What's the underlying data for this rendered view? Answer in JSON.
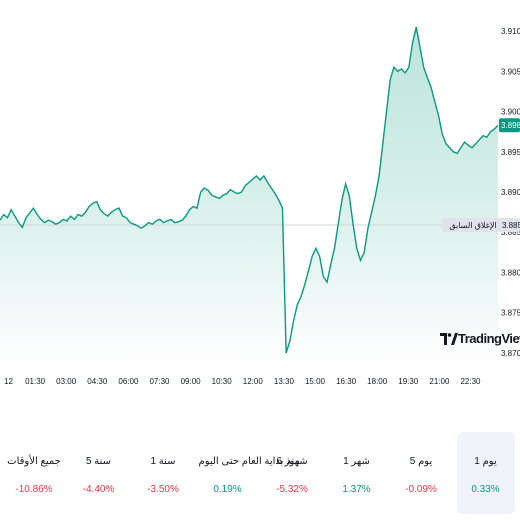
{
  "chart_data": {
    "type": "area",
    "x_ticks": [
      "12",
      "01:30",
      "03:00",
      "04:30",
      "06:00",
      "07:30",
      "09:00",
      "10:30",
      "12:00",
      "13:30",
      "15:00",
      "16:30",
      "18:00",
      "19:30",
      "21:00",
      "22:30"
    ],
    "y_ticks": [
      "3.9100",
      "3.9050",
      "3.9000",
      "3.8950",
      "3.8900",
      "3.8850",
      "3.8800",
      "3.8750",
      "3.8700"
    ],
    "ylim": [
      3.8685,
      3.912
    ],
    "series": [
      {
        "values": [
          3.8865,
          3.8872,
          3.8868,
          3.8878,
          3.887,
          3.8862,
          3.8856,
          3.8868,
          3.8874,
          3.888,
          3.8872,
          3.8866,
          3.8862,
          3.8865,
          3.8863,
          3.886,
          3.8862,
          3.8866,
          3.8864,
          3.887,
          3.8866,
          3.8872,
          3.887,
          3.8875,
          3.8882,
          3.8886,
          3.8888,
          3.8878,
          3.8873,
          3.887,
          3.8875,
          3.8878,
          3.888,
          3.887,
          3.8868,
          3.8862,
          3.886,
          3.8858,
          3.8855,
          3.8858,
          3.8862,
          3.886,
          3.8864,
          3.8866,
          3.8862,
          3.8864,
          3.8866,
          3.8862,
          3.8863,
          3.8865,
          3.887,
          3.8878,
          3.8882,
          3.888,
          3.89,
          3.8905,
          3.8902,
          3.8896,
          3.8894,
          3.8892,
          3.8896,
          3.8898,
          3.8903,
          3.89,
          3.8898,
          3.89,
          3.8908,
          3.8912,
          3.8916,
          3.892,
          3.8915,
          3.892,
          3.8912,
          3.8905,
          3.8898,
          3.889,
          3.888,
          3.87,
          3.8715,
          3.874,
          3.876,
          3.877,
          3.8785,
          3.8802,
          3.882,
          3.883,
          3.882,
          3.8795,
          3.8788,
          3.881,
          3.883,
          3.886,
          3.889,
          3.891,
          3.8895,
          3.886,
          3.883,
          3.8815,
          3.8825,
          3.8855,
          3.8875,
          3.8895,
          3.892,
          3.896,
          3.9,
          3.904,
          3.9055,
          3.905,
          3.9053,
          3.9048,
          3.9055,
          3.9085,
          3.9105,
          3.908,
          3.9055,
          3.9042,
          3.903,
          3.9012,
          3.8995,
          3.8972,
          3.896,
          3.8955,
          3.895,
          3.8948,
          3.8955,
          3.8962,
          3.8958,
          3.8955,
          3.896,
          3.8965,
          3.897,
          3.8968,
          3.8975,
          3.8978,
          3.8983
        ]
      }
    ],
    "last_value_label": "3.8983",
    "prev_close_value": 3.8859,
    "prev_close_name": "الإغلاق السابق",
    "prev_close_label": "3.8859",
    "colors": {
      "line": "#089981",
      "fill_top": "#a6dccf",
      "fill_bottom": "#ffffff",
      "prev_close_line": "#d1d4dc",
      "price_label_bg": "#089981",
      "prev_label_bg": "#e0e3eb"
    }
  },
  "brand": {
    "logo_text": "TradingView"
  },
  "performance": [
    {
      "label": "1 يوم",
      "value": "0.33%",
      "trend": "pos",
      "active": true
    },
    {
      "label": "5 يوم",
      "value": "-0.09%",
      "trend": "neg",
      "active": false
    },
    {
      "label": "1 شهر",
      "value": "1.37%",
      "trend": "pos",
      "active": false
    },
    {
      "label": "6 شهور",
      "value": "-5.32%",
      "trend": "neg",
      "active": false
    },
    {
      "label": "منذ بداية العام حتى اليوم",
      "value": "0.19%",
      "trend": "pos",
      "active": false
    },
    {
      "label": "1 سنة",
      "value": "-3.50%",
      "trend": "neg",
      "active": false
    },
    {
      "label": "5 سنة",
      "value": "-4.40%",
      "trend": "neg",
      "active": false
    },
    {
      "label": "جميع الأوقات",
      "value": "-10.86%",
      "trend": "neg",
      "active": false
    }
  ]
}
